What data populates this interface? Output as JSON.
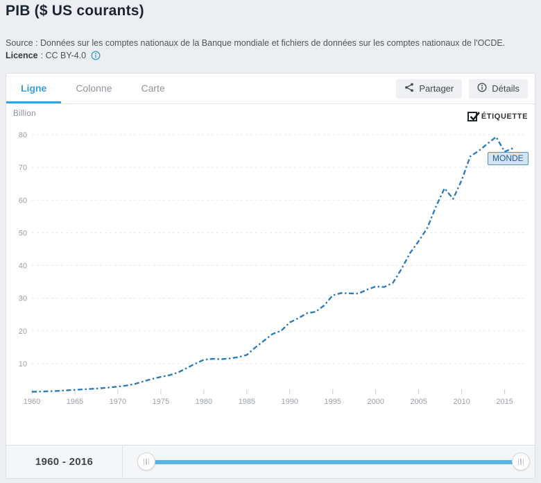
{
  "header": {
    "title": "PIB ($ US courants)",
    "source": "Source : Données sur les comptes nationaux de la Banque mondiale et fichiers de données sur les comptes nationaux de l'OCDE.",
    "licence_label": "Licence",
    "licence_value": ": CC BY-4.0",
    "licence_info_icon": "info-circle-icon"
  },
  "tabs": [
    {
      "label": "Ligne",
      "active": true
    },
    {
      "label": "Colonne",
      "active": false
    },
    {
      "label": "Carte",
      "active": false
    }
  ],
  "actions": {
    "share_label": "Partager",
    "share_icon": "share-icon",
    "details_label": "Détails",
    "details_icon": "info-circle-icon"
  },
  "chart": {
    "unit_label": "Billion",
    "label_toggle_text": "ÉTIQUETTE",
    "label_toggle_checked": true,
    "series_label_text": "MONDE"
  },
  "range": {
    "label": "1960 - 2016",
    "start": 1960,
    "end": 2016
  },
  "colors": {
    "accent_tab": "#3aa0dc",
    "line": "#2e7cb8",
    "slider_track": "#58b4e8",
    "gridline": "#e6e8eb",
    "axis_text": "#9aa0a7",
    "series_label_bg": "#cfe1f2",
    "series_label_border": "#4d90c8"
  },
  "chart_data": {
    "type": "line",
    "title": "PIB ($ US courants)",
    "ylabel": "Billion",
    "xlabel": "",
    "line_style": "dashed",
    "grid": "horizontal-dashed",
    "legend_label": "MONDE",
    "ylim": [
      0,
      80
    ],
    "xlim": [
      1960,
      2016
    ],
    "yticks": [
      10,
      20,
      30,
      40,
      50,
      60,
      70,
      80
    ],
    "xticks": [
      1960,
      1965,
      1970,
      1975,
      1980,
      1985,
      1990,
      1995,
      2000,
      2005,
      2010,
      2015
    ],
    "x": [
      1960,
      1961,
      1962,
      1963,
      1964,
      1965,
      1966,
      1967,
      1968,
      1969,
      1970,
      1971,
      1972,
      1973,
      1974,
      1975,
      1976,
      1977,
      1978,
      1979,
      1980,
      1981,
      1982,
      1983,
      1984,
      1985,
      1986,
      1987,
      1988,
      1989,
      1990,
      1991,
      1992,
      1993,
      1994,
      1995,
      1996,
      1997,
      1998,
      1999,
      2000,
      2001,
      2002,
      2003,
      2004,
      2005,
      2006,
      2007,
      2008,
      2009,
      2010,
      2011,
      2012,
      2013,
      2014,
      2015,
      2016
    ],
    "series": [
      {
        "name": "MONDE",
        "values": [
          1.37,
          1.42,
          1.53,
          1.64,
          1.8,
          1.96,
          2.13,
          2.26,
          2.44,
          2.69,
          2.96,
          3.27,
          3.77,
          4.59,
          5.31,
          5.92,
          6.44,
          7.28,
          8.59,
          9.96,
          11.16,
          11.45,
          11.33,
          11.55,
          11.95,
          12.62,
          14.93,
          16.99,
          19.05,
          20.04,
          22.58,
          23.87,
          25.41,
          25.83,
          27.78,
          30.86,
          31.57,
          31.44,
          31.41,
          32.59,
          33.58,
          33.41,
          34.69,
          38.93,
          43.84,
          47.44,
          51.45,
          57.97,
          63.6,
          60.34,
          66.05,
          73.36,
          75.06,
          77.22,
          79.31,
          74.77,
          75.87
        ]
      }
    ]
  }
}
